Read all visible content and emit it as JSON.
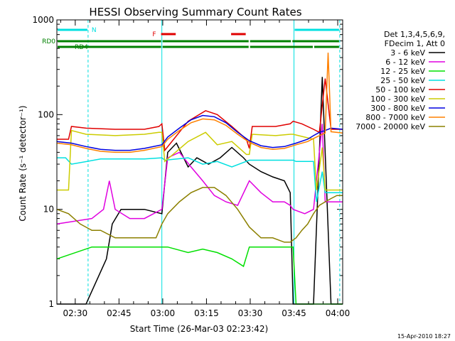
{
  "chart_data": {
    "type": "line",
    "title": "HESSI Observing Summary Count Rates",
    "xlabel": "Start Time (26-Mar-03 02:23:42)",
    "ylabel": "Count Rate (s⁻¹ detector⁻¹)",
    "x_unit": "minutes after 02:23:42",
    "xlim": [
      0,
      98
    ],
    "ylim": [
      1,
      1000
    ],
    "yscale": "log",
    "x_ticks": [
      {
        "label": "02:30",
        "value": 6.3
      },
      {
        "label": "02:45",
        "value": 21.3
      },
      {
        "label": "03:00",
        "value": 36.3
      },
      {
        "label": "03:15",
        "value": 51.3
      },
      {
        "label": "03:30",
        "value": 66.3
      },
      {
        "label": "03:45",
        "value": 81.3
      },
      {
        "label": "04:00",
        "value": 96.3
      }
    ],
    "y_ticks": [
      {
        "label": "1",
        "value": 1
      },
      {
        "label": "10",
        "value": 10
      },
      {
        "label": "100",
        "value": 100
      },
      {
        "label": "1000",
        "value": 1000
      }
    ],
    "legend_header": [
      "Det 1,3,4,5,6,9,",
      "FDecim 1, Att 0"
    ],
    "series": [
      {
        "name": "3 - 6 keV",
        "color": "#000000",
        "x": [
          0,
          10,
          17,
          19,
          22,
          30,
          36,
          38,
          41,
          45,
          48,
          52,
          56,
          60,
          64,
          66,
          70,
          74,
          78,
          80,
          81,
          84,
          88,
          91,
          94,
          98
        ],
        "y": [
          1,
          1,
          3,
          7,
          10,
          10,
          9,
          40,
          50,
          28,
          35,
          30,
          35,
          45,
          35,
          30,
          25,
          22,
          20,
          15,
          1,
          1,
          1,
          250,
          1,
          1
        ]
      },
      {
        "name": "6 - 12 keV",
        "color": "#e000e0",
        "x": [
          0,
          12,
          16,
          18,
          20,
          25,
          30,
          36,
          38,
          42,
          46,
          50,
          54,
          58,
          62,
          66,
          70,
          74,
          78,
          80,
          81,
          85,
          88,
          91,
          92,
          95,
          98
        ],
        "y": [
          7,
          8,
          10,
          20,
          10,
          8,
          8,
          10,
          35,
          40,
          28,
          20,
          14,
          12,
          11,
          20,
          15,
          12,
          12,
          11,
          10,
          9,
          10,
          80,
          12,
          12,
          12
        ]
      },
      {
        "name": "12 - 25 keV",
        "color": "#00e000",
        "x": [
          0,
          12,
          20,
          30,
          36,
          38,
          45,
          50,
          55,
          60,
          64,
          66,
          75,
          81,
          82,
          86,
          88,
          98
        ],
        "y": [
          3,
          4,
          4,
          4,
          4,
          4,
          3.5,
          3.8,
          3.5,
          3,
          2.5,
          4,
          4,
          4,
          1,
          1,
          1,
          1
        ]
      },
      {
        "name": "25 - 50 keV",
        "color": "#00e0e0",
        "x": [
          0,
          3,
          5,
          15,
          25,
          30,
          36,
          37,
          45,
          50,
          55,
          60,
          66,
          67,
          75,
          81,
          82,
          88,
          89,
          91,
          92,
          98
        ],
        "y": [
          35,
          35,
          30,
          34,
          34,
          34,
          35,
          33,
          35,
          30,
          32,
          28,
          33,
          33,
          33,
          33,
          32,
          32,
          12,
          25,
          15,
          15
        ]
      },
      {
        "name": "50 - 100 keV",
        "color": "#e00000",
        "x": [
          0,
          4,
          5,
          10,
          20,
          30,
          35,
          36,
          37,
          45,
          51,
          55,
          60,
          65,
          66,
          67,
          75,
          80,
          81,
          84,
          88,
          90,
          92,
          94,
          98
        ],
        "y": [
          55,
          55,
          75,
          72,
          70,
          70,
          75,
          80,
          42,
          85,
          110,
          100,
          75,
          55,
          44,
          75,
          75,
          80,
          85,
          80,
          70,
          65,
          240,
          70,
          70
        ]
      },
      {
        "name": "100 - 300 keV",
        "color": "#cccc00",
        "x": [
          0,
          4,
          5,
          10,
          20,
          30,
          35,
          36,
          37,
          45,
          51,
          55,
          60,
          65,
          66,
          67,
          75,
          80,
          81,
          88,
          89,
          91,
          92,
          98
        ],
        "y": [
          16,
          16,
          68,
          62,
          60,
          62,
          65,
          65,
          32,
          52,
          65,
          48,
          52,
          38,
          38,
          62,
          60,
          62,
          62,
          55,
          16,
          45,
          16,
          16
        ]
      },
      {
        "name": "300 - 800 keV",
        "color": "#0000e0",
        "x": [
          0,
          5,
          10,
          15,
          20,
          25,
          30,
          36,
          38,
          42,
          46,
          50,
          54,
          58,
          62,
          66,
          70,
          74,
          78,
          82,
          86,
          88,
          90,
          92,
          94,
          98
        ],
        "y": [
          52,
          50,
          46,
          43,
          42,
          42,
          44,
          48,
          58,
          72,
          88,
          98,
          95,
          82,
          65,
          53,
          47,
          45,
          46,
          50,
          55,
          60,
          65,
          68,
          72,
          70
        ]
      },
      {
        "name": "800 - 7000 keV",
        "color": "#ff8000",
        "x": [
          0,
          5,
          10,
          15,
          20,
          25,
          30,
          36,
          38,
          42,
          46,
          50,
          54,
          58,
          62,
          66,
          70,
          74,
          78,
          82,
          86,
          88,
          90,
          92,
          93,
          94,
          98
        ],
        "y": [
          50,
          48,
          44,
          41,
          40,
          40,
          42,
          46,
          55,
          68,
          82,
          90,
          88,
          77,
          62,
          51,
          45,
          43,
          44,
          48,
          52,
          56,
          60,
          64,
          450,
          66,
          64
        ]
      },
      {
        "name": "7000 - 20000 keV",
        "color": "#8c8000",
        "x": [
          0,
          4,
          8,
          12,
          15,
          20,
          25,
          30,
          34,
          36,
          38,
          42,
          46,
          50,
          54,
          58,
          62,
          66,
          70,
          74,
          78,
          80,
          82,
          84,
          86,
          88,
          90,
          92,
          94,
          96,
          98
        ],
        "y": [
          10,
          9,
          7,
          6,
          6,
          5,
          5,
          5,
          5,
          7,
          9,
          12,
          15,
          17,
          17,
          14,
          10,
          6.5,
          5,
          5,
          4.5,
          4.5,
          5,
          6,
          7,
          9,
          11,
          12,
          13,
          14,
          14
        ]
      }
    ],
    "vertical_lines": [
      {
        "x": 10.7,
        "style": "dashed",
        "color": "#00e0e0"
      },
      {
        "x": 36,
        "style": "solid",
        "color": "#00e0e0"
      },
      {
        "x": 81.3,
        "style": "solid",
        "color": "#00e0e0"
      },
      {
        "x": 97,
        "style": "dashed",
        "color": "#00e0e0"
      }
    ],
    "status_bars": [
      {
        "label": "N",
        "color": "#00e0e0",
        "segments": [
          [
            0,
            10.7
          ],
          [
            81.3,
            97
          ]
        ]
      },
      {
        "label": "F",
        "color": "#e00000",
        "segments": [
          [
            35.5,
            41
          ],
          [
            59.5,
            65
          ]
        ]
      },
      {
        "label": "RD0",
        "color": "#008000",
        "segments": [
          [
            0,
            36
          ],
          [
            36,
            66
          ],
          [
            66,
            80.5
          ],
          [
            80.5,
            97
          ]
        ]
      },
      {
        "label": "RD4",
        "color": "#008000",
        "segments": [
          [
            0,
            36
          ],
          [
            36,
            66
          ],
          [
            66,
            88
          ],
          [
            88,
            97
          ]
        ]
      }
    ],
    "footer_date": "15-Apr-2010 18:27"
  }
}
